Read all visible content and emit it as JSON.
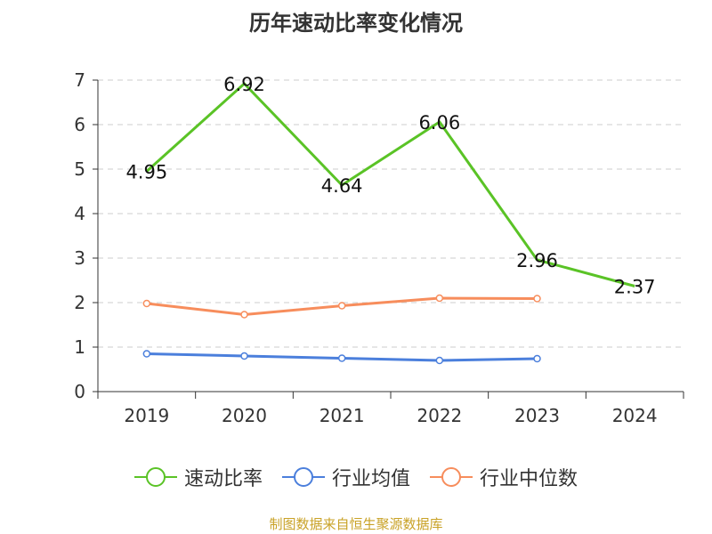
{
  "title": "历年速动比率变化情况",
  "source": "制图数据来自恒生聚源数据库",
  "chart_data": {
    "type": "line",
    "title": "历年速动比率变化情况",
    "categories": [
      "2019",
      "2020",
      "2021",
      "2022",
      "2023",
      "2024"
    ],
    "ylim": [
      0,
      7
    ],
    "yticks": [
      "0",
      "1",
      "2",
      "3",
      "4",
      "5",
      "6",
      "7"
    ],
    "grid": true,
    "legend_position": "bottom",
    "series": [
      {
        "name": "速动比率",
        "color": "#5ac326",
        "values": [
          4.95,
          6.92,
          4.64,
          6.06,
          2.96,
          2.37
        ],
        "labels": [
          "4.95",
          "6.92",
          "4.64",
          "6.06",
          "2.96",
          "2.37"
        ]
      },
      {
        "name": "行业均值",
        "color": "#4b7fdc",
        "values": [
          0.85,
          0.8,
          0.75,
          0.7,
          0.74,
          null
        ]
      },
      {
        "name": "行业中位数",
        "color": "#f78d5c",
        "values": [
          1.98,
          1.73,
          1.93,
          2.1,
          2.09,
          null
        ]
      }
    ]
  }
}
